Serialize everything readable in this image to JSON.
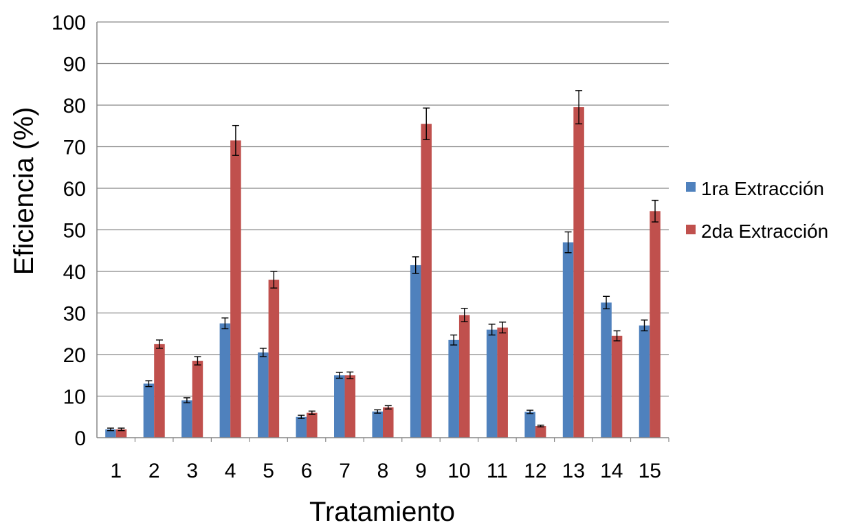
{
  "chart_data": {
    "type": "bar",
    "title": "",
    "xlabel": "Tratamiento",
    "ylabel": "Eficiencia (%)",
    "ylim": [
      0,
      100
    ],
    "yticks": [
      0,
      10,
      20,
      30,
      40,
      50,
      60,
      70,
      80,
      90,
      100
    ],
    "grid": true,
    "legend_position": "right",
    "categories": [
      "1",
      "2",
      "3",
      "4",
      "5",
      "6",
      "7",
      "8",
      "9",
      "10",
      "11",
      "12",
      "13",
      "14",
      "15"
    ],
    "series": [
      {
        "name": "1ra Extracción",
        "color": "#4F81BD",
        "values": [
          2.0,
          13.0,
          9.0,
          27.5,
          20.5,
          5.0,
          15.0,
          6.3,
          41.5,
          23.5,
          26.0,
          6.2,
          47.0,
          32.5,
          27.0
        ],
        "errors": [
          0.3,
          0.7,
          0.6,
          1.3,
          1.0,
          0.4,
          0.7,
          0.4,
          2.0,
          1.2,
          1.3,
          0.4,
          2.5,
          1.5,
          1.3
        ]
      },
      {
        "name": "2da Extracción",
        "color": "#C0504D",
        "values": [
          2.0,
          22.5,
          18.5,
          71.5,
          38.0,
          6.0,
          15.0,
          7.3,
          75.5,
          29.5,
          26.5,
          2.8,
          79.5,
          24.5,
          54.5
        ],
        "errors": [
          0.3,
          1.0,
          1.0,
          3.6,
          2.0,
          0.4,
          0.8,
          0.4,
          3.8,
          1.6,
          1.3,
          0.2,
          4.0,
          1.2,
          2.6
        ]
      }
    ]
  }
}
